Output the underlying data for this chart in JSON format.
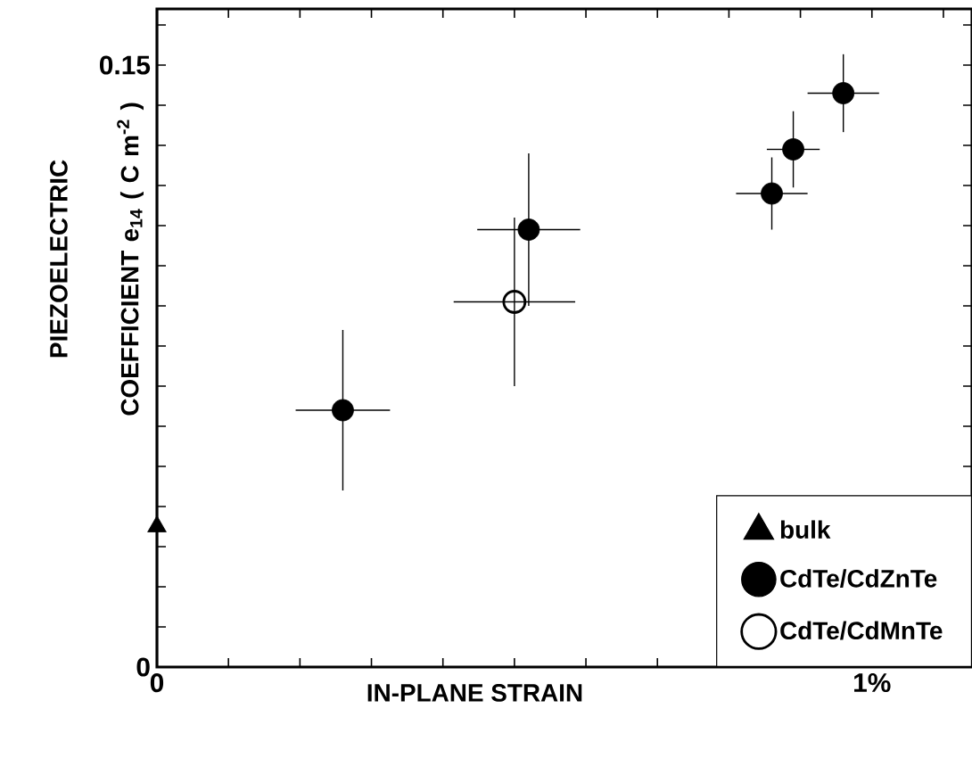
{
  "chart_data": {
    "type": "scatter",
    "xlabel": "IN-PLANE STRAIN",
    "ylabel": "PIEZOELECTRIC COEFFICIENT e$_{14}$ ( C m$^{-2}$ )",
    "xlim": [
      0,
      1.14
    ],
    "ylim": [
      0,
      0.164
    ],
    "xticks": [
      {
        "value": 0,
        "label": "0"
      },
      {
        "value": 0.1,
        "label": null
      },
      {
        "value": 0.2,
        "label": null
      },
      {
        "value": 0.3,
        "label": null
      },
      {
        "value": 0.4,
        "label": null
      },
      {
        "value": 0.5,
        "label": null
      },
      {
        "value": 0.6,
        "label": null
      },
      {
        "value": 0.7,
        "label": null
      },
      {
        "value": 0.8,
        "label": null
      },
      {
        "value": 0.9,
        "label": null
      },
      {
        "value": 1,
        "label": "1%"
      },
      {
        "value": 1.1,
        "label": null
      }
    ],
    "yticks": [
      0,
      {
        "value": 0.01,
        "label": null
      },
      {
        "value": 0.02,
        "label": null
      },
      {
        "value": 0.03,
        "label": null
      },
      {
        "value": 0.04,
        "label": null
      },
      {
        "value": 0.05,
        "label": null
      },
      {
        "value": 0.06,
        "label": null
      },
      {
        "value": 0.07,
        "label": null
      },
      {
        "value": 0.08,
        "label": null
      },
      {
        "value": 0.09,
        "label": null
      },
      {
        "value": 0.1,
        "label": null
      },
      {
        "value": 0.11,
        "label": null
      },
      {
        "value": 0.12,
        "label": null
      },
      {
        "value": 0.13,
        "label": null
      },
      {
        "value": 0.14,
        "label": null
      },
      0.15,
      {
        "value": 0.16,
        "label": null
      }
    ],
    "legend": "bottom right",
    "series": [
      {
        "name": "bulk",
        "color": "#000000",
        "marker": "triangle",
        "x": [
          0
        ],
        "values": [
          0.035
        ]
      },
      {
        "name": "CdTe/CdZnTe",
        "color": "#000000",
        "marker": "circle",
        "x": [
          0.26,
          0.52,
          0.86,
          0.89,
          0.96
        ],
        "values": [
          0.064,
          0.109,
          0.118,
          0.129,
          0.143
        ],
        "errors": [
          0.02,
          0.019,
          0.009,
          0.0095,
          0.0097
        ],
        "xerrors": [
          0.066,
          0.072,
          0.05,
          0.037,
          0.05
        ]
      },
      {
        "name": "CdTe/CdMnTe",
        "color": "#000000",
        "marker": "circle-open",
        "x": [
          0.5
        ],
        "values": [
          0.091
        ],
        "errors": [
          0.021
        ],
        "xerrors": [
          0.085
        ]
      }
    ]
  }
}
